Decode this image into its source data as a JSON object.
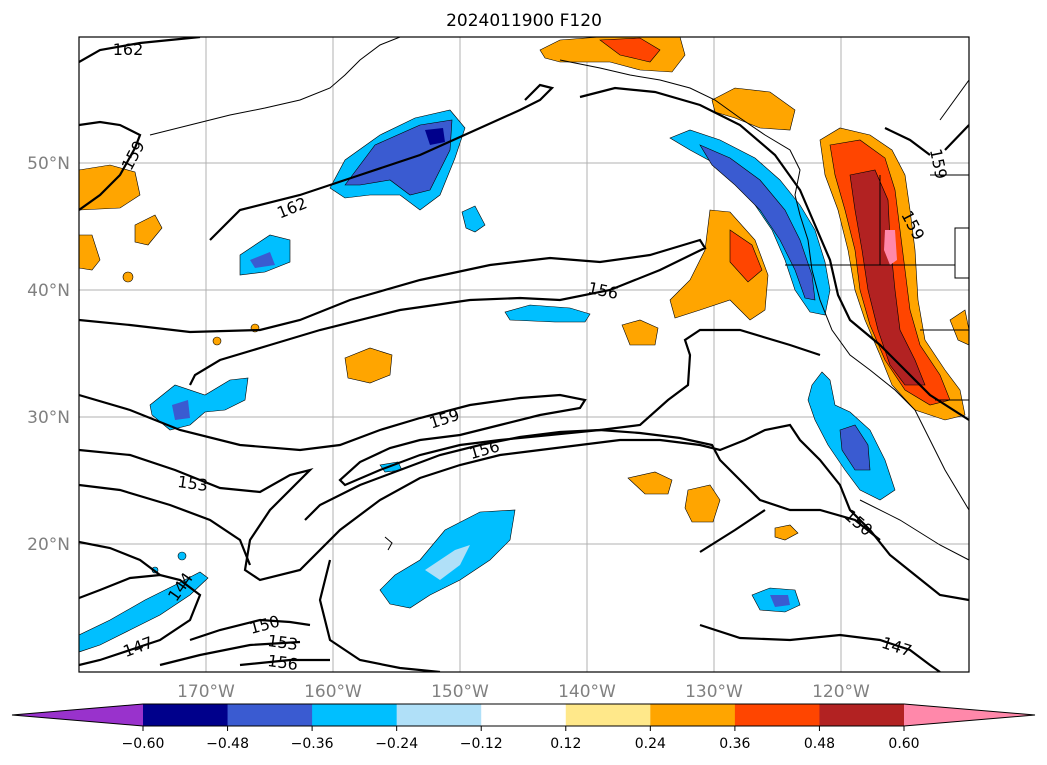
{
  "title": "2024011900 F120",
  "lat_labels": [
    "50°N",
    "40°N",
    "30°N",
    "20°N"
  ],
  "lon_labels": [
    "170°W",
    "160°W",
    "150°W",
    "140°W",
    "130°W",
    "120°W"
  ],
  "contour_labels": [
    "162",
    "159",
    "162",
    "156",
    "159",
    "156",
    "153",
    "150",
    "147",
    "144",
    "147",
    "150",
    "153",
    "156",
    "159"
  ],
  "colorbar": {
    "ticks": [
      "−0.60",
      "−0.48",
      "−0.36",
      "−0.24",
      "−0.12",
      "0.12",
      "0.24",
      "0.36",
      "0.48",
      "0.60"
    ],
    "colors": [
      "#9932cc",
      "#00008b",
      "#3a5bd1",
      "#00bfff",
      "#b0e0f8",
      "#ffffff",
      "#ffe88a",
      "#ffa500",
      "#ff4500",
      "#b22222",
      "#ff88aa"
    ]
  }
}
